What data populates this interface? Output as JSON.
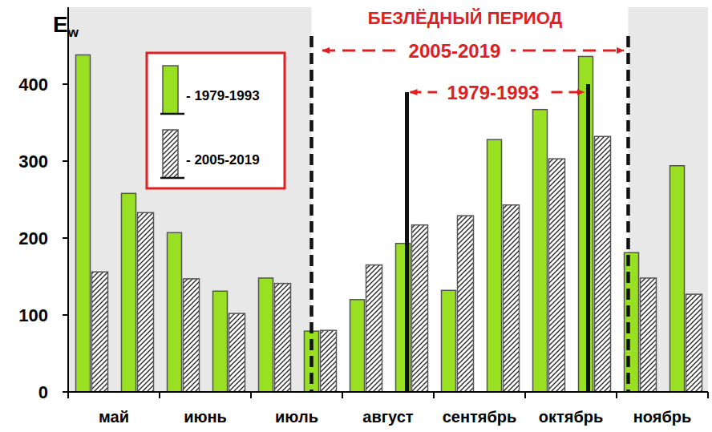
{
  "chart_data": {
    "type": "bar",
    "ylabel": "Ew",
    "categories": [
      "май",
      null,
      "июнь",
      null,
      "июль",
      null,
      "август",
      null,
      "сентябрь",
      null,
      "октябрь",
      null,
      "ноябрь",
      null
    ],
    "series": [
      {
        "name": "- 1979-1993",
        "color": "#99df22",
        "values": [
          438,
          258,
          207,
          131,
          148,
          79,
          120,
          193,
          132,
          328,
          367,
          436,
          181,
          294
        ]
      },
      {
        "name": "- 2005-2019",
        "color": "#222222",
        "values": [
          156,
          233,
          147,
          102,
          141,
          80,
          165,
          217,
          229,
          243,
          303,
          332,
          148,
          127
        ]
      }
    ],
    "ylim": [
      0,
      500
    ],
    "yticks": [
      0,
      100,
      200,
      300,
      400
    ],
    "grid": false,
    "legend": "top-left",
    "annotations": [
      "БЕЗЛЁДНЫЙ ПЕРИОД",
      "2005-2019",
      "1979-1993"
    ]
  }
}
